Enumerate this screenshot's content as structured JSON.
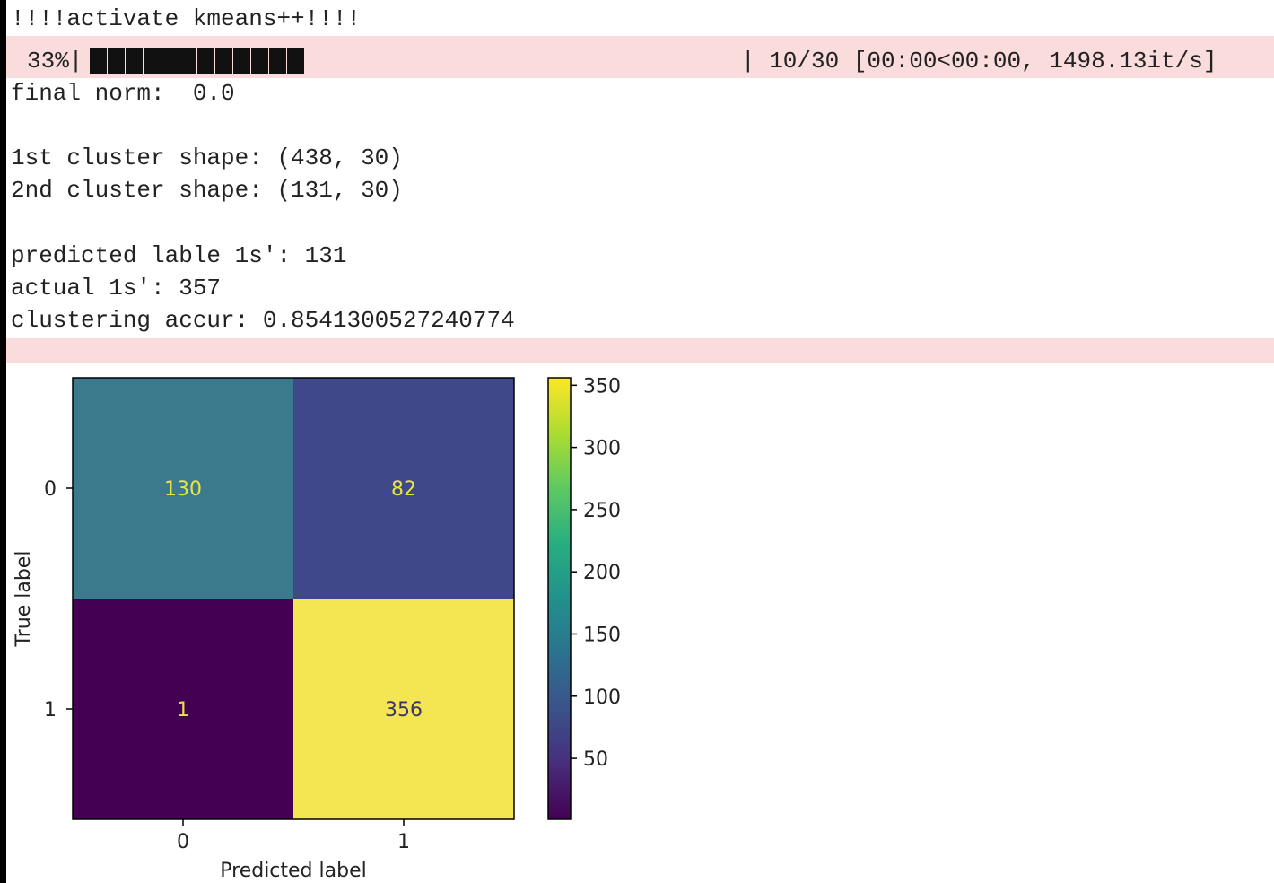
{
  "output": {
    "line_activate": "!!!!activate kmeans++!!!!",
    "progress": {
      "percent_label": "33%|",
      "fraction_complete": 0.33,
      "right_text": "| 10/30 [00:00<00:00, 1498.13it/s]"
    },
    "line_final_norm": "final norm:  0.0",
    "line_cluster1": "1st cluster shape: (438, 30)",
    "line_cluster2": "2nd cluster shape: (131, 30)",
    "line_predicted": "predicted lable 1s': 131",
    "line_actual": "actual 1s': 357",
    "line_accuracy": "clustering accur: 0.8541300527240774"
  },
  "chart_data": {
    "type": "heatmap",
    "title": "",
    "xlabel": "Predicted label",
    "ylabel": "True label",
    "x_categories": [
      "0",
      "1"
    ],
    "y_categories": [
      "0",
      "1"
    ],
    "values": [
      [
        130,
        82
      ],
      [
        1,
        356
      ]
    ],
    "value_labels": [
      [
        "130",
        "82"
      ],
      [
        "1",
        "356"
      ]
    ],
    "colormap": "viridis",
    "colorbar": {
      "range": [
        1,
        356
      ],
      "ticks": [
        50,
        100,
        150,
        200,
        250,
        300,
        350
      ],
      "tick_labels": [
        "50",
        "100",
        "150",
        "200",
        "250",
        "300",
        "350"
      ]
    },
    "colors": {
      "cell_00": "#3a7a8c",
      "cell_01": "#3f4889",
      "cell_10": "#440154",
      "cell_11": "#f4e552",
      "text_on_dark": "#e8e44a",
      "text_on_light": "#3b3468"
    }
  }
}
